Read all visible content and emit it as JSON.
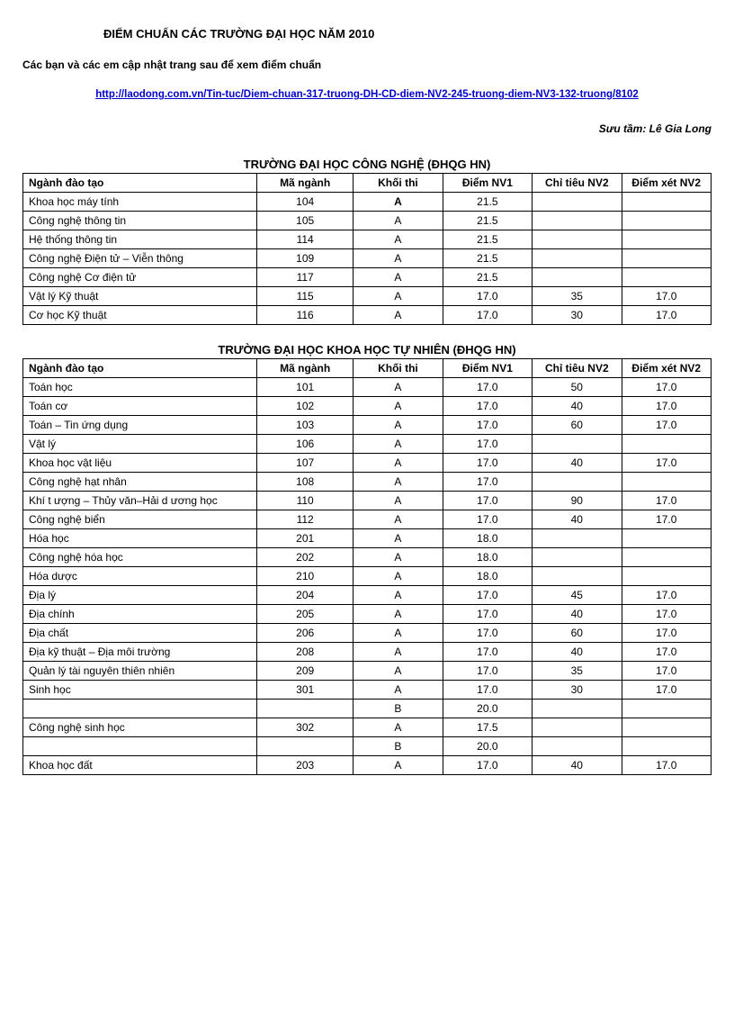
{
  "title": "ĐIỂM  CHUẨN  CÁC TRƯỜNG  ĐẠI HỌC NĂM 2010",
  "subtitle": "Các bạn và các em cập  nhật trang sau để xem điểm chuẩn",
  "link_text": "http://laodong.com.vn/Tin-tuc/Diem-chuan-317-truong-DH-CD-diem-NV2-245-truong-diem-NV3-132-truong/8102",
  "credit": "Sưu tầm: Lê Gia Long",
  "headers": {
    "name": "Ngành  đào tạo",
    "code": "Mã ngành",
    "block": "Khối thi",
    "nv1": "Điểm NV1",
    "nv2_target": "Chỉ tiêu NV2",
    "nv2_score": "Điểm  xét NV2"
  },
  "table1": {
    "title": "TRƯỜNG  ĐẠI HỌC CÔNG NGHỆ  (ĐHQG HN)",
    "rows": [
      {
        "name": "Khoa học máy tính",
        "code": "104",
        "block": "A",
        "nv1": "21.5",
        "nv2t": "",
        "nv2s": "",
        "bold_block": true
      },
      {
        "name": "Công nghệ thông tin",
        "code": "105",
        "block": "A",
        "nv1": "21.5",
        "nv2t": "",
        "nv2s": ""
      },
      {
        "name": "Hệ thống thông tin",
        "code": "114",
        "block": "A",
        "nv1": "21.5",
        "nv2t": "",
        "nv2s": ""
      },
      {
        "name": "Công nghệ Điện tử – Viễn thông",
        "code": "109",
        "block": "A",
        "nv1": "21.5",
        "nv2t": "",
        "nv2s": ""
      },
      {
        "name": "Công nghệ Cơ điện tử",
        "code": "117",
        "block": "A",
        "nv1": "21.5",
        "nv2t": "",
        "nv2s": ""
      },
      {
        "name": "Vật lý Kỹ thuật",
        "code": "115",
        "block": "A",
        "nv1": "17.0",
        "nv2t": "35",
        "nv2s": "17.0"
      },
      {
        "name": "Cơ học Kỹ thuật",
        "code": "116",
        "block": "A",
        "nv1": "17.0",
        "nv2t": "30",
        "nv2s": "17.0"
      }
    ]
  },
  "table2": {
    "title": "TRƯỜNG  ĐẠI HỌC KHOA HỌC TỰ NHIÊN  (ĐHQG HN)",
    "rows": [
      {
        "name": "Toán học",
        "code": "101",
        "block": "A",
        "nv1": "17.0",
        "nv2t": "50",
        "nv2s": "17.0"
      },
      {
        "name": "Toán cơ",
        "code": "102",
        "block": "A",
        "nv1": "17.0",
        "nv2t": "40",
        "nv2s": "17.0"
      },
      {
        "name": "Toán – Tin ứng dụng",
        "code": "103",
        "block": "A",
        "nv1": "17.0",
        "nv2t": "60",
        "nv2s": "17.0"
      },
      {
        "name": "Vật lý",
        "code": "106",
        "block": "A",
        "nv1": "17.0",
        "nv2t": "",
        "nv2s": ""
      },
      {
        "name": "Khoa học vật liệu",
        "code": "107",
        "block": "A",
        "nv1": "17.0",
        "nv2t": "40",
        "nv2s": "17.0"
      },
      {
        "name": "Công nghệ hạt nhân",
        "code": "108",
        "block": "A",
        "nv1": "17.0",
        "nv2t": "",
        "nv2s": ""
      },
      {
        "name": "Khí t ượng – Thủy văn–Hải d ương học",
        "code": "110",
        "block": "A",
        "nv1": "17.0",
        "nv2t": "90",
        "nv2s": "17.0"
      },
      {
        "name": "Công nghệ biển",
        "code": "112",
        "block": "A",
        "nv1": "17.0",
        "nv2t": "40",
        "nv2s": "17.0"
      },
      {
        "name": "Hóa học",
        "code": "201",
        "block": "A",
        "nv1": "18.0",
        "nv2t": "",
        "nv2s": ""
      },
      {
        "name": "Công nghệ hóa học",
        "code": "202",
        "block": "A",
        "nv1": "18.0",
        "nv2t": "",
        "nv2s": ""
      },
      {
        "name": "Hóa dược",
        "code": "210",
        "block": "A",
        "nv1": "18.0",
        "nv2t": "",
        "nv2s": ""
      },
      {
        "name": "Địa lý",
        "code": "204",
        "block": "A",
        "nv1": "17.0",
        "nv2t": "45",
        "nv2s": "17.0"
      },
      {
        "name": "Địa chính",
        "code": "205",
        "block": "A",
        "nv1": "17.0",
        "nv2t": "40",
        "nv2s": "17.0"
      },
      {
        "name": "Địa chất",
        "code": "206",
        "block": "A",
        "nv1": "17.0",
        "nv2t": "60",
        "nv2s": "17.0"
      },
      {
        "name": "Địa kỹ thuật – Địa môi trường",
        "code": "208",
        "block": "A",
        "nv1": "17.0",
        "nv2t": "40",
        "nv2s": "17.0"
      },
      {
        "name": "Quản lý tài nguyên thiên nhiên",
        "code": "209",
        "block": "A",
        "nv1": "17.0",
        "nv2t": "35",
        "nv2s": "17.0"
      },
      {
        "name": "Sinh học",
        "code": "301",
        "block": "A",
        "nv1": "17.0",
        "nv2t": "30",
        "nv2s": "17.0"
      },
      {
        "name": "",
        "code": "",
        "block": "B",
        "nv1": "20.0",
        "nv2t": "",
        "nv2s": ""
      },
      {
        "name": "Công nghệ sinh học",
        "code": "302",
        "block": "A",
        "nv1": "17.5",
        "nv2t": "",
        "nv2s": ""
      },
      {
        "name": "",
        "code": "",
        "block": "B",
        "nv1": "20.0",
        "nv2t": "",
        "nv2s": ""
      },
      {
        "name": "Khoa học đất",
        "code": "203",
        "block": "A",
        "nv1": "17.0",
        "nv2t": "40",
        "nv2s": "17.0"
      }
    ]
  }
}
